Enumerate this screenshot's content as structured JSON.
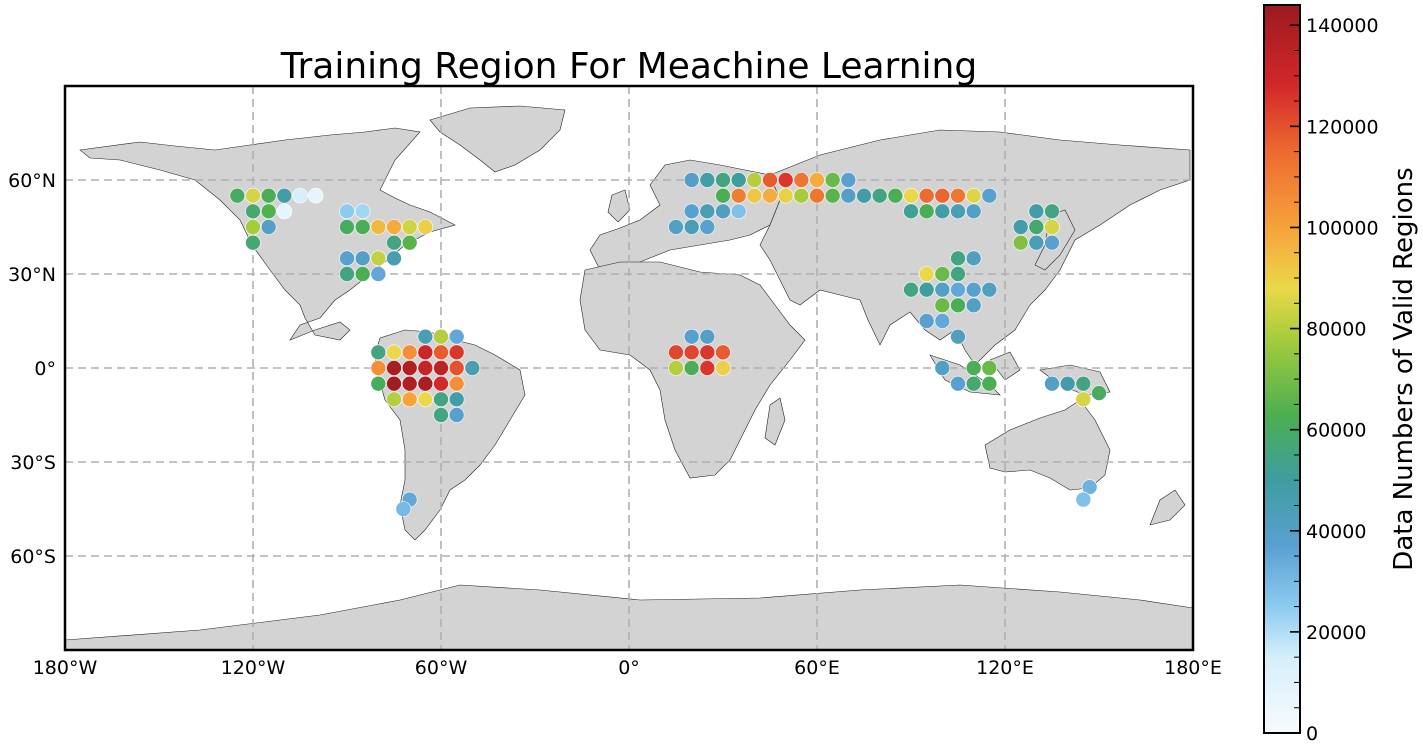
{
  "chart_data": {
    "type": "scatter",
    "title": "Training Region For Meachine Learning",
    "projection": "plate-carree",
    "x_axis": {
      "ticks": [
        -180,
        -120,
        -60,
        0,
        60,
        120,
        180
      ],
      "tick_labels": [
        "180°W",
        "120°W",
        "60°W",
        "0°",
        "60°E",
        "120°E",
        "180°E"
      ],
      "range": [
        -180,
        180
      ]
    },
    "y_axis": {
      "ticks": [
        60,
        30,
        0,
        -30,
        -60
      ],
      "tick_labels": [
        "60°N",
        "30°N",
        "0°",
        "30°S",
        "60°S"
      ],
      "range": [
        -90,
        90
      ]
    },
    "grid": true,
    "colorbar": {
      "label": "Data Numbers of Valid Regions",
      "range": [
        0,
        144000
      ],
      "ticks": [
        0,
        20000,
        40000,
        60000,
        80000,
        100000,
        120000,
        140000
      ],
      "tick_labels": [
        "0",
        "20000",
        "40000",
        "60000",
        "80000",
        "100000",
        "120000",
        "140000"
      ],
      "colormap_stops": [
        {
          "v": 0,
          "color": "#f7fbff"
        },
        {
          "v": 15000,
          "color": "#d6effa"
        },
        {
          "v": 25000,
          "color": "#8ccbf0"
        },
        {
          "v": 37000,
          "color": "#5aa0d2"
        },
        {
          "v": 50000,
          "color": "#3f9da0"
        },
        {
          "v": 63000,
          "color": "#4caf50"
        },
        {
          "v": 78000,
          "color": "#a6cc3c"
        },
        {
          "v": 88000,
          "color": "#ead84a"
        },
        {
          "v": 100000,
          "color": "#f7a23b"
        },
        {
          "v": 115000,
          "color": "#ed6a30"
        },
        {
          "v": 128000,
          "color": "#d3282a"
        },
        {
          "v": 144000,
          "color": "#9b1b1f"
        }
      ]
    },
    "points": [
      {
        "lon": -125,
        "lat": 55,
        "v": 60000
      },
      {
        "lon": -120,
        "lat": 55,
        "v": 85000
      },
      {
        "lon": -115,
        "lat": 55,
        "v": 62000
      },
      {
        "lon": -110,
        "lat": 55,
        "v": 48000
      },
      {
        "lon": -105,
        "lat": 55,
        "v": 15000
      },
      {
        "lon": -100,
        "lat": 55,
        "v": 8000
      },
      {
        "lon": -120,
        "lat": 50,
        "v": 58000
      },
      {
        "lon": -115,
        "lat": 50,
        "v": 64000
      },
      {
        "lon": -110,
        "lat": 50,
        "v": 8000
      },
      {
        "lon": -120,
        "lat": 45,
        "v": 78000
      },
      {
        "lon": -115,
        "lat": 45,
        "v": 40000
      },
      {
        "lon": -120,
        "lat": 40,
        "v": 58000
      },
      {
        "lon": -90,
        "lat": 45,
        "v": 60000
      },
      {
        "lon": -85,
        "lat": 45,
        "v": 62000
      },
      {
        "lon": -80,
        "lat": 45,
        "v": 95000
      },
      {
        "lon": -75,
        "lat": 45,
        "v": 98000
      },
      {
        "lon": -70,
        "lat": 45,
        "v": 84000
      },
      {
        "lon": -65,
        "lat": 45,
        "v": 90000
      },
      {
        "lon": -90,
        "lat": 50,
        "v": 25000
      },
      {
        "lon": -85,
        "lat": 50,
        "v": 22000
      },
      {
        "lon": -75,
        "lat": 40,
        "v": 55000
      },
      {
        "lon": -70,
        "lat": 40,
        "v": 65000
      },
      {
        "lon": -90,
        "lat": 35,
        "v": 38000
      },
      {
        "lon": -85,
        "lat": 35,
        "v": 40000
      },
      {
        "lon": -80,
        "lat": 35,
        "v": 82000
      },
      {
        "lon": -75,
        "lat": 35,
        "v": 45000
      },
      {
        "lon": -90,
        "lat": 30,
        "v": 55000
      },
      {
        "lon": -85,
        "lat": 30,
        "v": 62000
      },
      {
        "lon": -80,
        "lat": 30,
        "v": 35000
      },
      {
        "lon": -80,
        "lat": 5,
        "v": 55000
      },
      {
        "lon": -75,
        "lat": 5,
        "v": 88000
      },
      {
        "lon": -70,
        "lat": 5,
        "v": 105000
      },
      {
        "lon": -65,
        "lat": 5,
        "v": 130000
      },
      {
        "lon": -60,
        "lat": 5,
        "v": 118000
      },
      {
        "lon": -55,
        "lat": 5,
        "v": 125000
      },
      {
        "lon": -75,
        "lat": 0,
        "v": 140000
      },
      {
        "lon": -70,
        "lat": 0,
        "v": 138000
      },
      {
        "lon": -65,
        "lat": 0,
        "v": 132000
      },
      {
        "lon": -60,
        "lat": 0,
        "v": 135000
      },
      {
        "lon": -55,
        "lat": 0,
        "v": 120000
      },
      {
        "lon": -50,
        "lat": 0,
        "v": 45000
      },
      {
        "lon": -80,
        "lat": 0,
        "v": 105000
      },
      {
        "lon": -80,
        "lat": -5,
        "v": 60000
      },
      {
        "lon": -75,
        "lat": -5,
        "v": 142000
      },
      {
        "lon": -70,
        "lat": -5,
        "v": 138000
      },
      {
        "lon": -65,
        "lat": -5,
        "v": 140000
      },
      {
        "lon": -60,
        "lat": -5,
        "v": 128000
      },
      {
        "lon": -55,
        "lat": -5,
        "v": 105000
      },
      {
        "lon": -75,
        "lat": -10,
        "v": 80000
      },
      {
        "lon": -70,
        "lat": -10,
        "v": 100000
      },
      {
        "lon": -65,
        "lat": -10,
        "v": 88000
      },
      {
        "lon": -60,
        "lat": -10,
        "v": 55000
      },
      {
        "lon": -55,
        "lat": -10,
        "v": 48000
      },
      {
        "lon": -60,
        "lat": -15,
        "v": 55000
      },
      {
        "lon": -55,
        "lat": -15,
        "v": 38000
      },
      {
        "lon": -60,
        "lat": 10,
        "v": 80000
      },
      {
        "lon": -65,
        "lat": 10,
        "v": 45000
      },
      {
        "lon": -55,
        "lat": 10,
        "v": 35000
      },
      {
        "lon": 15,
        "lat": 5,
        "v": 122000
      },
      {
        "lon": 20,
        "lat": 5,
        "v": 122000
      },
      {
        "lon": 25,
        "lat": 5,
        "v": 125000
      },
      {
        "lon": 30,
        "lat": 5,
        "v": 118000
      },
      {
        "lon": 15,
        "lat": 0,
        "v": 80000
      },
      {
        "lon": 20,
        "lat": 0,
        "v": 62000
      },
      {
        "lon": 25,
        "lat": 0,
        "v": 125000
      },
      {
        "lon": 30,
        "lat": 0,
        "v": 90000
      },
      {
        "lon": 20,
        "lat": 10,
        "v": 38000
      },
      {
        "lon": 25,
        "lat": 10,
        "v": 40000
      },
      {
        "lon": 30,
        "lat": 60,
        "v": 55000
      },
      {
        "lon": 35,
        "lat": 60,
        "v": 50000
      },
      {
        "lon": 40,
        "lat": 60,
        "v": 80000
      },
      {
        "lon": 45,
        "lat": 60,
        "v": 118000
      },
      {
        "lon": 50,
        "lat": 60,
        "v": 125000
      },
      {
        "lon": 55,
        "lat": 60,
        "v": 112000
      },
      {
        "lon": 60,
        "lat": 60,
        "v": 98000
      },
      {
        "lon": 65,
        "lat": 60,
        "v": 68000
      },
      {
        "lon": 70,
        "lat": 60,
        "v": 38000
      },
      {
        "lon": 30,
        "lat": 55,
        "v": 62000
      },
      {
        "lon": 35,
        "lat": 55,
        "v": 110000
      },
      {
        "lon": 40,
        "lat": 55,
        "v": 92000
      },
      {
        "lon": 45,
        "lat": 55,
        "v": 98000
      },
      {
        "lon": 50,
        "lat": 55,
        "v": 90000
      },
      {
        "lon": 55,
        "lat": 55,
        "v": 78000
      },
      {
        "lon": 60,
        "lat": 55,
        "v": 112000
      },
      {
        "lon": 65,
        "lat": 55,
        "v": 65000
      },
      {
        "lon": 70,
        "lat": 55,
        "v": 40000
      },
      {
        "lon": 75,
        "lat": 55,
        "v": 48000
      },
      {
        "lon": 80,
        "lat": 55,
        "v": 55000
      },
      {
        "lon": 85,
        "lat": 55,
        "v": 62000
      },
      {
        "lon": 90,
        "lat": 55,
        "v": 88000
      },
      {
        "lon": 95,
        "lat": 55,
        "v": 115000
      },
      {
        "lon": 100,
        "lat": 55,
        "v": 116000
      },
      {
        "lon": 105,
        "lat": 55,
        "v": 112000
      },
      {
        "lon": 110,
        "lat": 55,
        "v": 86000
      },
      {
        "lon": 115,
        "lat": 55,
        "v": 38000
      },
      {
        "lon": 20,
        "lat": 60,
        "v": 40000
      },
      {
        "lon": 25,
        "lat": 60,
        "v": 48000
      },
      {
        "lon": 20,
        "lat": 50,
        "v": 38000
      },
      {
        "lon": 25,
        "lat": 50,
        "v": 45000
      },
      {
        "lon": 30,
        "lat": 50,
        "v": 42000
      },
      {
        "lon": 35,
        "lat": 50,
        "v": 28000
      },
      {
        "lon": 15,
        "lat": 45,
        "v": 40000
      },
      {
        "lon": 20,
        "lat": 45,
        "v": 45000
      },
      {
        "lon": 25,
        "lat": 45,
        "v": 38000
      },
      {
        "lon": 90,
        "lat": 50,
        "v": 52000
      },
      {
        "lon": 95,
        "lat": 50,
        "v": 62000
      },
      {
        "lon": 100,
        "lat": 50,
        "v": 48000
      },
      {
        "lon": 105,
        "lat": 50,
        "v": 45000
      },
      {
        "lon": 110,
        "lat": 50,
        "v": 40000
      },
      {
        "lon": 130,
        "lat": 50,
        "v": 48000
      },
      {
        "lon": 135,
        "lat": 50,
        "v": 55000
      },
      {
        "lon": 130,
        "lat": 45,
        "v": 58000
      },
      {
        "lon": 135,
        "lat": 45,
        "v": 85000
      },
      {
        "lon": 125,
        "lat": 45,
        "v": 48000
      },
      {
        "lon": 125,
        "lat": 40,
        "v": 72000
      },
      {
        "lon": 130,
        "lat": 40,
        "v": 45000
      },
      {
        "lon": 135,
        "lat": 40,
        "v": 38000
      },
      {
        "lon": 95,
        "lat": 30,
        "v": 88000
      },
      {
        "lon": 100,
        "lat": 30,
        "v": 68000
      },
      {
        "lon": 105,
        "lat": 30,
        "v": 55000
      },
      {
        "lon": 90,
        "lat": 25,
        "v": 55000
      },
      {
        "lon": 95,
        "lat": 25,
        "v": 50000
      },
      {
        "lon": 100,
        "lat": 25,
        "v": 40000
      },
      {
        "lon": 105,
        "lat": 25,
        "v": 35000
      },
      {
        "lon": 110,
        "lat": 25,
        "v": 38000
      },
      {
        "lon": 115,
        "lat": 25,
        "v": 42000
      },
      {
        "lon": 100,
        "lat": 20,
        "v": 68000
      },
      {
        "lon": 105,
        "lat": 20,
        "v": 62000
      },
      {
        "lon": 110,
        "lat": 20,
        "v": 40000
      },
      {
        "lon": 105,
        "lat": 35,
        "v": 55000
      },
      {
        "lon": 110,
        "lat": 35,
        "v": 42000
      },
      {
        "lon": 95,
        "lat": 15,
        "v": 38000
      },
      {
        "lon": 100,
        "lat": 15,
        "v": 35000
      },
      {
        "lon": 105,
        "lat": 10,
        "v": 42000
      },
      {
        "lon": 110,
        "lat": 0,
        "v": 62000
      },
      {
        "lon": 115,
        "lat": 0,
        "v": 68000
      },
      {
        "lon": 110,
        "lat": -5,
        "v": 58000
      },
      {
        "lon": 115,
        "lat": -5,
        "v": 62000
      },
      {
        "lon": 140,
        "lat": -5,
        "v": 48000
      },
      {
        "lon": 145,
        "lat": -5,
        "v": 55000
      },
      {
        "lon": 135,
        "lat": -5,
        "v": 40000
      },
      {
        "lon": 145,
        "lat": -10,
        "v": 85000
      },
      {
        "lon": 150,
        "lat": -8,
        "v": 60000
      },
      {
        "lon": 100,
        "lat": 0,
        "v": 40000
      },
      {
        "lon": 105,
        "lat": -5,
        "v": 38000
      },
      {
        "lon": 147,
        "lat": -38,
        "v": 32000
      },
      {
        "lon": 145,
        "lat": -42,
        "v": 28000
      },
      {
        "lon": -70,
        "lat": -42,
        "v": 35000
      },
      {
        "lon": -72,
        "lat": -45,
        "v": 30000
      }
    ]
  }
}
